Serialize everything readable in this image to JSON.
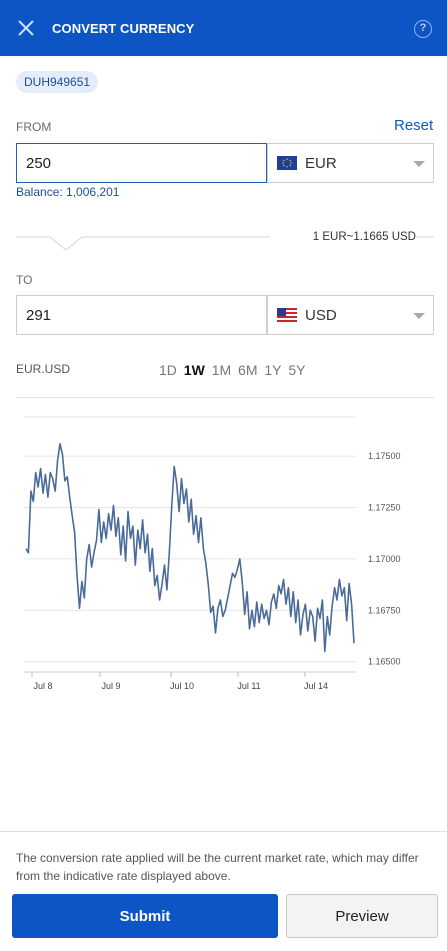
{
  "header": {
    "title": "CONVERT CURRENCY",
    "close_icon": "close-icon",
    "help_icon": "help-icon",
    "help_glyph": "?",
    "background": "#0d55c4"
  },
  "account": {
    "id": "DUH949651"
  },
  "from": {
    "label": "FROM",
    "reset_label": "Reset",
    "amount": "250",
    "currency": "EUR",
    "flag_icon": "eu-flag-icon",
    "balance": "Balance: 1,006,201"
  },
  "rate": {
    "text": "1 EUR~1.1665 USD"
  },
  "to": {
    "label": "TO",
    "amount": "291",
    "currency": "USD",
    "flag_icon": "us-flag-icon"
  },
  "chart_section": {
    "pair": "EUR.USD",
    "ranges": [
      "1D",
      "1W",
      "1M",
      "6M",
      "1Y",
      "5Y"
    ],
    "active_range": "1W"
  },
  "chart_data": {
    "type": "line",
    "title": "",
    "xlabel": "",
    "ylabel": "",
    "ylim": [
      1.1645,
      1.177
    ],
    "x_ticks": [
      "Jul 8",
      "Jul 9",
      "Jul 10",
      "Jul 11",
      "Jul 14"
    ],
    "y_ticks": [
      "1.17500",
      "1.17250",
      "1.17000",
      "1.16750",
      "1.16500"
    ],
    "y_tick_values": [
      1.175,
      1.1725,
      1.17,
      1.1675,
      1.165
    ],
    "line_color": "#4a6b9a",
    "grid": "horizontal",
    "series": [
      {
        "values": [
          1.1705,
          1.1703,
          1.1733,
          1.1728,
          1.1742,
          1.1735,
          1.1744,
          1.1732,
          1.1741,
          1.173,
          1.1742,
          1.1739,
          1.1733,
          1.1748,
          1.1756,
          1.1751,
          1.1738,
          1.174,
          1.173,
          1.1721,
          1.1713,
          1.1692,
          1.1676,
          1.1689,
          1.1681,
          1.17,
          1.1707,
          1.1696,
          1.1703,
          1.1709,
          1.1724,
          1.1708,
          1.1718,
          1.171,
          1.1722,
          1.1714,
          1.1726,
          1.1711,
          1.172,
          1.1702,
          1.1716,
          1.1699,
          1.1723,
          1.171,
          1.1716,
          1.1697,
          1.1714,
          1.1705,
          1.1719,
          1.1703,
          1.1712,
          1.1694,
          1.1705,
          1.1687,
          1.1692,
          1.168,
          1.1688,
          1.1697,
          1.1685,
          1.1703,
          1.1726,
          1.1745,
          1.1737,
          1.1723,
          1.1739,
          1.1727,
          1.1734,
          1.1718,
          1.1729,
          1.1712,
          1.1721,
          1.1708,
          1.172,
          1.1705,
          1.1698,
          1.1688,
          1.1674,
          1.1677,
          1.1664,
          1.1676,
          1.168,
          1.1672,
          1.1675,
          1.1681,
          1.1687,
          1.1693,
          1.1691,
          1.1695,
          1.17,
          1.1689,
          1.1673,
          1.1684,
          1.1666,
          1.1675,
          1.1667,
          1.1679,
          1.1669,
          1.1678,
          1.1671,
          1.1675,
          1.1668,
          1.1679,
          1.1683,
          1.1676,
          1.1687,
          1.1683,
          1.169,
          1.1678,
          1.1686,
          1.1672,
          1.1684,
          1.1669,
          1.168,
          1.1663,
          1.1673,
          1.1678,
          1.1665,
          1.1675,
          1.1672,
          1.166,
          1.1676,
          1.1671,
          1.168,
          1.1655,
          1.1672,
          1.1663,
          1.1677,
          1.1686,
          1.168,
          1.169,
          1.1682,
          1.1686,
          1.167,
          1.1688,
          1.1678,
          1.1659
        ]
      }
    ]
  },
  "footer": {
    "note": "The conversion rate applied will be the current market rate, which may differ from the indicative rate displayed above.",
    "submit_label": "Submit",
    "preview_label": "Preview"
  }
}
